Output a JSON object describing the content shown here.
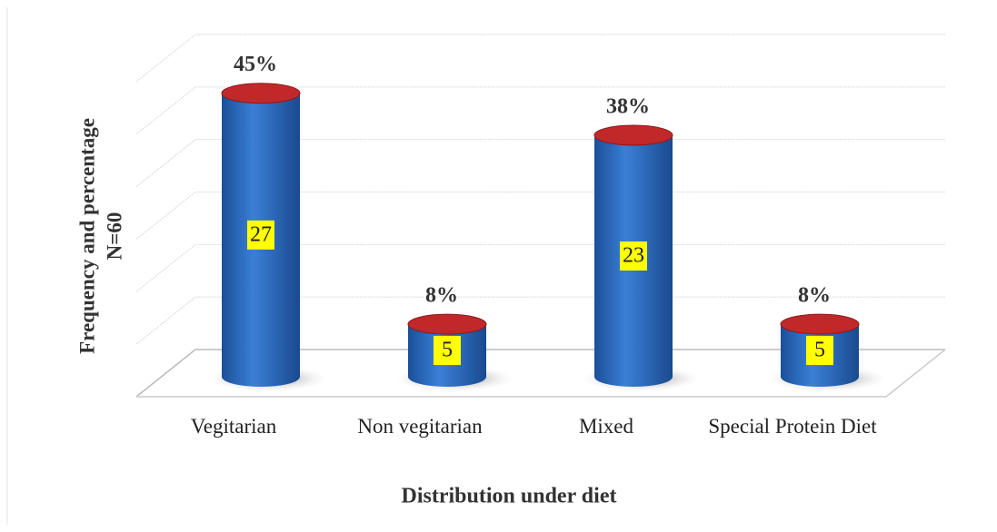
{
  "chart_data": {
    "type": "bar",
    "categories": [
      "Vegitarian",
      "Non vegitarian",
      "Mixed",
      "Special Protein Diet"
    ],
    "values": [
      27,
      5,
      23,
      5
    ],
    "percentages": [
      45,
      8,
      38,
      8
    ],
    "percentage_labels": [
      "45%",
      "8%",
      "38%",
      "8%"
    ],
    "color": "#2f6fc4",
    "top_color": "#c0282a",
    "x_label": "Distribution under diet",
    "y_label": [
      "Frequency and percentage",
      "N=60"
    ],
    "ylim": [
      0,
      30
    ],
    "yticks": [
      0,
      5,
      10,
      15,
      20,
      25,
      30
    ],
    "grid": true
  }
}
